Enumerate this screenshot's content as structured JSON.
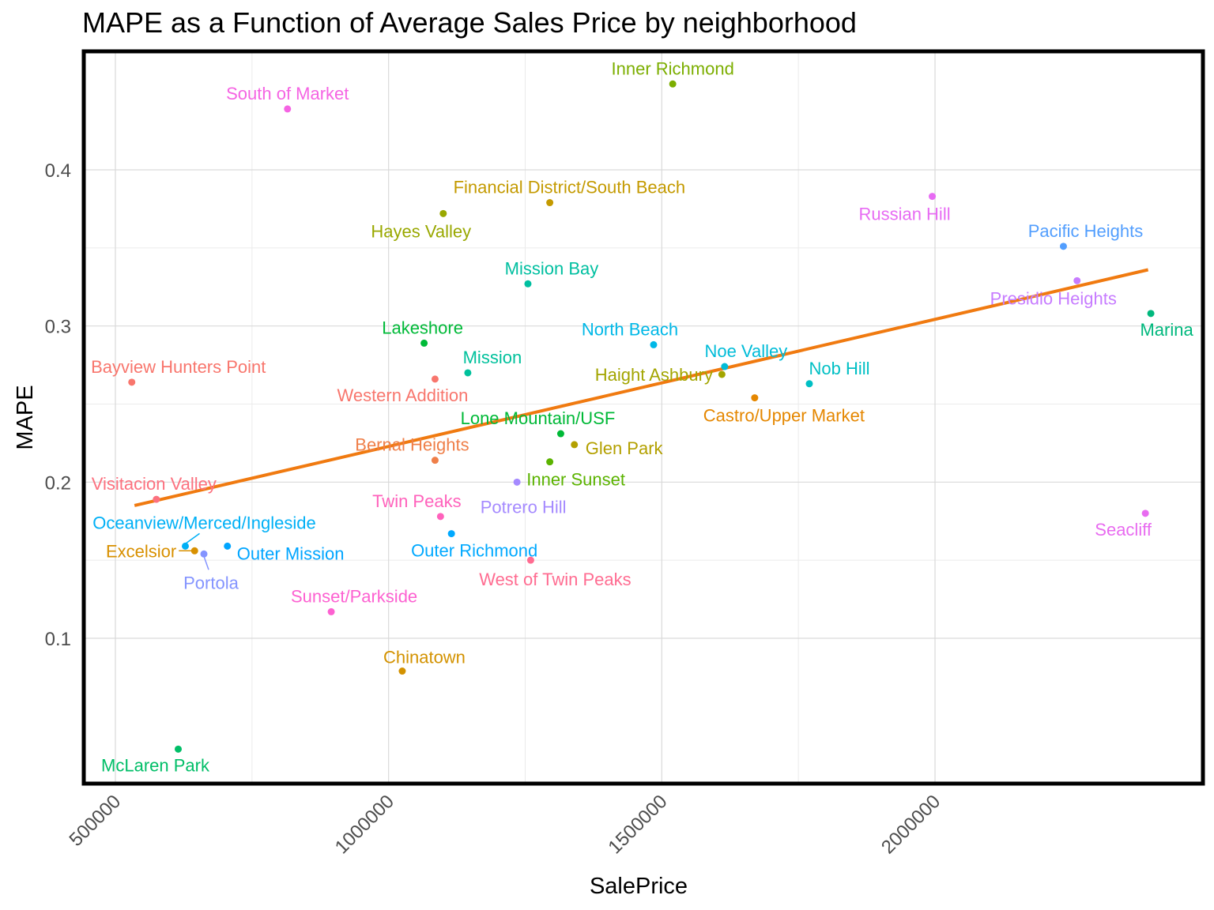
{
  "chart_data": {
    "type": "scatter",
    "title": "MAPE as a Function of Average Sales Price by neighborhood",
    "xlabel": "SalePrice",
    "ylabel": "MAPE",
    "xlim": [
      435000,
      2480000
    ],
    "ylim": [
      0.01,
      0.48
    ],
    "x_ticks": [
      500000,
      1000000,
      1500000,
      2000000
    ],
    "x_tick_labels": [
      "500000",
      "1000000",
      "1500000",
      "2000000"
    ],
    "y_ticks": [
      0.1,
      0.2,
      0.3,
      0.4
    ],
    "y_tick_labels": [
      "0.1",
      "0.2",
      "0.3",
      "0.4"
    ],
    "grid": true,
    "trend_line": {
      "color": "#f07a10",
      "x": [
        535000,
        2390000
      ],
      "y": [
        0.185,
        0.336
      ]
    },
    "points": [
      {
        "name": "Inner Richmond",
        "x": 1520000,
        "y": 0.455,
        "color": "#7cae00",
        "anchor": "middle",
        "dy": -12
      },
      {
        "name": "South of Market",
        "x": 815000,
        "y": 0.439,
        "color": "#f564e3",
        "anchor": "middle",
        "dy": -12
      },
      {
        "name": "Financial District/South Beach",
        "x": 1295000,
        "y": 0.379,
        "color": "#c49a00",
        "anchor": "start",
        "dx": -122,
        "dy": -12
      },
      {
        "name": "Hayes Valley",
        "x": 1100000,
        "y": 0.372,
        "color": "#99a800",
        "anchor": "middle",
        "dx": -28,
        "dy": 30
      },
      {
        "name": "Russian Hill",
        "x": 1995000,
        "y": 0.383,
        "color": "#e76bf3",
        "anchor": "middle",
        "dx": -35,
        "dy": 30
      },
      {
        "name": "Pacific Heights",
        "x": 2235000,
        "y": 0.351,
        "color": "#529efe",
        "anchor": "middle",
        "dx": 28,
        "dy": -12
      },
      {
        "name": "Mission Bay",
        "x": 1255000,
        "y": 0.327,
        "color": "#00bfa0",
        "anchor": "middle",
        "dx": 30,
        "dy": -12
      },
      {
        "name": "Presidio Heights",
        "x": 2260000,
        "y": 0.329,
        "color": "#c77cff",
        "anchor": "middle",
        "dx": -30,
        "dy": 30
      },
      {
        "name": "Marina",
        "x": 2395000,
        "y": 0.308,
        "color": "#00b87d",
        "anchor": "middle",
        "dx": 20,
        "dy": 28
      },
      {
        "name": "Lakeshore",
        "x": 1065000,
        "y": 0.289,
        "color": "#00ba38",
        "anchor": "middle",
        "dx": -2,
        "dy": -12
      },
      {
        "name": "North Beach",
        "x": 1485000,
        "y": 0.288,
        "color": "#00b8e7",
        "anchor": "middle",
        "dx": -30,
        "dy": -12
      },
      {
        "name": "Mission",
        "x": 1145000,
        "y": 0.27,
        "color": "#00c19c",
        "anchor": "middle",
        "dx": 31,
        "dy": -12
      },
      {
        "name": "Bayview Hunters Point",
        "x": 530000,
        "y": 0.264,
        "color": "#f8766d",
        "anchor": "middle",
        "dx": 59,
        "dy": -12
      },
      {
        "name": "Western Addition",
        "x": 1085000,
        "y": 0.266,
        "color": "#f8766d",
        "anchor": "middle",
        "dx": -41,
        "dy": 28
      },
      {
        "name": "Noe Valley",
        "x": 1615000,
        "y": 0.274,
        "color": "#00bcd8",
        "anchor": "middle",
        "dx": 27,
        "dy": -12
      },
      {
        "name": "Nob Hill",
        "x": 1770000,
        "y": 0.263,
        "color": "#00bfc4",
        "anchor": "middle",
        "dx": 38,
        "dy": -12
      },
      {
        "name": "Haight Ashbury",
        "x": 1610000,
        "y": 0.269,
        "color": "#a3a500",
        "anchor": "middle",
        "dx": -86,
        "dy": 8
      },
      {
        "name": "Castro/Upper Market",
        "x": 1670000,
        "y": 0.254,
        "color": "#e58700",
        "anchor": "middle",
        "dx": 37,
        "dy": 30
      },
      {
        "name": "Lone Mountain/USF",
        "x": 1315000,
        "y": 0.231,
        "color": "#00b937",
        "anchor": "middle",
        "dx": -29,
        "dy": -12
      },
      {
        "name": "Glen Park",
        "x": 1340000,
        "y": 0.224,
        "color": "#b3a000",
        "anchor": "start",
        "dx": 14,
        "dy": 12
      },
      {
        "name": "Bernal Heights",
        "x": 1085000,
        "y": 0.214,
        "color": "#ef7f49",
        "anchor": "middle",
        "dx": -29,
        "dy": -12
      },
      {
        "name": "Inner Sunset",
        "x": 1295000,
        "y": 0.213,
        "color": "#5bb300",
        "anchor": "middle",
        "dx": 33,
        "dy": 30
      },
      {
        "name": "Potrero Hill",
        "x": 1235000,
        "y": 0.2,
        "color": "#a58aff",
        "anchor": "middle",
        "dx": 8,
        "dy": 39
      },
      {
        "name": "Visitacion Valley",
        "x": 575000,
        "y": 0.189,
        "color": "#fc717f",
        "anchor": "middle",
        "dx": -3,
        "dy": -12
      },
      {
        "name": "Twin Peaks",
        "x": 1095000,
        "y": 0.178,
        "color": "#ff62bc",
        "anchor": "middle",
        "dx": -30,
        "dy": -12
      },
      {
        "name": "Seacliff",
        "x": 2385000,
        "y": 0.18,
        "color": "#e86bf0",
        "anchor": "middle",
        "dx": -28,
        "dy": 28
      },
      {
        "name": "Outer Richmond",
        "x": 1115000,
        "y": 0.167,
        "color": "#00a9ff",
        "anchor": "middle",
        "dx": 29,
        "dy": 29
      },
      {
        "name": "Oceanview/Merced/Ingleside",
        "x": 628000,
        "y": 0.159,
        "color": "#00b0f6",
        "anchor": "middle",
        "dx": 24,
        "dy": -22
      },
      {
        "name": "Outer Mission",
        "x": 705000,
        "y": 0.159,
        "color": "#00a5ff",
        "anchor": "start",
        "dx": 12,
        "dy": 17
      },
      {
        "name": "Excelsior",
        "x": 645000,
        "y": 0.156,
        "color": "#d89000",
        "anchor": "end",
        "dx": -23,
        "dy": 8
      },
      {
        "name": "Portola",
        "x": 662000,
        "y": 0.154,
        "color": "#8494ff",
        "anchor": "middle",
        "dx": 9,
        "dy": 44
      },
      {
        "name": "West of Twin Peaks",
        "x": 1260000,
        "y": 0.15,
        "color": "#ff6c91",
        "anchor": "middle",
        "dx": 31,
        "dy": 32
      },
      {
        "name": "Sunset/Parkside",
        "x": 895000,
        "y": 0.117,
        "color": "#fd61d1",
        "anchor": "middle",
        "dx": 29,
        "dy": -12
      },
      {
        "name": "Chinatown",
        "x": 1025000,
        "y": 0.079,
        "color": "#d39200",
        "anchor": "middle",
        "dx": 28,
        "dy": -10
      },
      {
        "name": "McLaren Park",
        "x": 615000,
        "y": 0.029,
        "color": "#00be67",
        "anchor": "middle",
        "dx": -29,
        "dy": 28
      }
    ]
  }
}
